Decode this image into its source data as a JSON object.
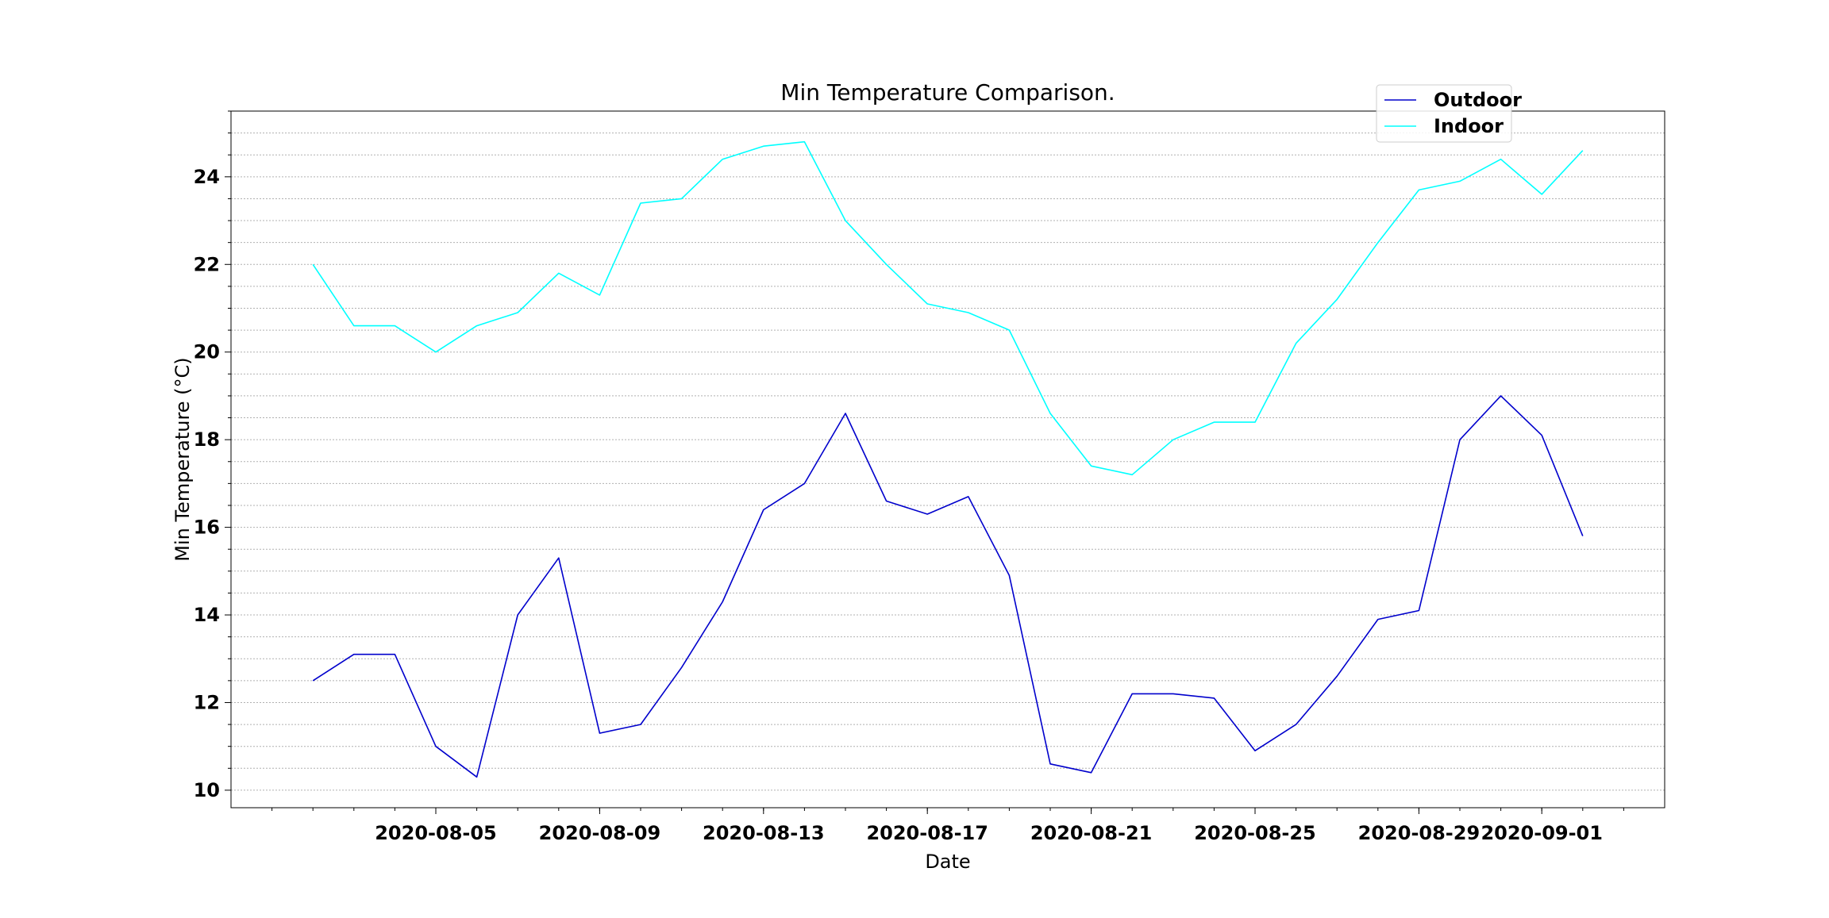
{
  "chart_data": {
    "type": "line",
    "title": "Min Temperature Comparison.",
    "xlabel": "Date",
    "ylabel": "Min Temperature (°C)",
    "x": [
      "2020-08-02",
      "2020-08-03",
      "2020-08-04",
      "2020-08-05",
      "2020-08-06",
      "2020-08-07",
      "2020-08-08",
      "2020-08-09",
      "2020-08-10",
      "2020-08-11",
      "2020-08-12",
      "2020-08-13",
      "2020-08-14",
      "2020-08-15",
      "2020-08-16",
      "2020-08-17",
      "2020-08-18",
      "2020-08-19",
      "2020-08-20",
      "2020-08-21",
      "2020-08-22",
      "2020-08-23",
      "2020-08-24",
      "2020-08-25",
      "2020-08-26",
      "2020-08-27",
      "2020-08-28",
      "2020-08-29",
      "2020-08-30",
      "2020-08-31",
      "2020-09-01",
      "2020-09-02"
    ],
    "series": [
      {
        "name": "Outdoor",
        "color": "#0000cc",
        "values": [
          12.5,
          13.1,
          13.1,
          11.0,
          10.3,
          14.0,
          15.3,
          11.3,
          11.5,
          12.8,
          14.3,
          16.4,
          17.0,
          18.6,
          16.6,
          16.3,
          16.7,
          14.9,
          10.6,
          10.4,
          12.2,
          12.2,
          12.1,
          10.9,
          11.5,
          12.6,
          13.9,
          14.1,
          18.0,
          19.0,
          18.1,
          15.8
        ]
      },
      {
        "name": "Indoor",
        "color": "#00ffff",
        "values": [
          22.0,
          20.6,
          20.6,
          20.0,
          20.6,
          20.9,
          21.8,
          21.3,
          23.4,
          23.5,
          24.4,
          24.7,
          24.8,
          23.0,
          22.0,
          21.1,
          20.9,
          20.5,
          18.6,
          17.4,
          17.2,
          18.0,
          18.4,
          18.4,
          20.2,
          21.2,
          22.5,
          23.7,
          23.9,
          24.4,
          23.6,
          24.6
        ]
      }
    ],
    "xticks": [
      "2020-08-05",
      "2020-08-09",
      "2020-08-13",
      "2020-08-17",
      "2020-08-21",
      "2020-08-25",
      "2020-08-29",
      "2020-09-01"
    ],
    "yticks": [
      10,
      12,
      14,
      16,
      18,
      20,
      22,
      24
    ],
    "ylim": [
      9.6,
      25.5
    ],
    "xlim": [
      "2020-07-31",
      "2020-09-04"
    ],
    "grid": "horizontal dotted",
    "legend": "upper center-right"
  }
}
